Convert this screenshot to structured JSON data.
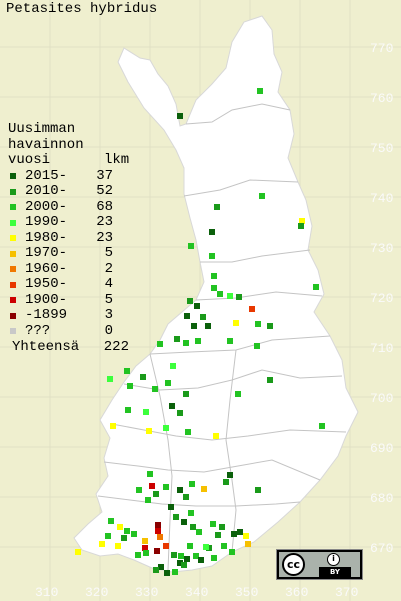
{
  "title": "Petasites hybridus",
  "legend": {
    "heading": [
      "Uusimman",
      "havainnon"
    ],
    "col_year": "vuosi",
    "col_count": "lkm",
    "rows": [
      {
        "label": "2015-",
        "count": "37",
        "color": "#0b600b"
      },
      {
        "label": "2010-",
        "count": "52",
        "color": "#1a9a1a"
      },
      {
        "label": "2000-",
        "count": "68",
        "color": "#22c322"
      },
      {
        "label": "1990-",
        "count": "23",
        "color": "#3cff3c"
      },
      {
        "label": "1980-",
        "count": "23",
        "color": "#ffff00"
      },
      {
        "label": "1970-",
        "count": "5",
        "color": "#f6c000"
      },
      {
        "label": "1960-",
        "count": "2",
        "color": "#f07800"
      },
      {
        "label": "1950-",
        "count": "4",
        "color": "#e83800"
      },
      {
        "label": "1900-",
        "count": "5",
        "color": "#cc0000"
      },
      {
        "label": "-1899",
        "count": "3",
        "color": "#8a0000"
      },
      {
        "label": "???",
        "count": "0",
        "color": "#c8c8c8"
      }
    ],
    "total_label": "Yhteensä",
    "total_count": "222"
  },
  "y_axis_labels": [
    "770",
    "760",
    "750",
    "740",
    "730",
    "720",
    "710",
    "700",
    "690",
    "680",
    "670"
  ],
  "x_axis_labels": [
    "310",
    "320",
    "330",
    "340",
    "350",
    "360",
    "370"
  ],
  "license": {
    "cc": "cc",
    "by": "BY",
    "person": "i"
  },
  "colors": {
    "background": "#efefcf",
    "land": "#ffffff",
    "grid": "#c8c8c8",
    "border": "#aaaaaa"
  }
}
